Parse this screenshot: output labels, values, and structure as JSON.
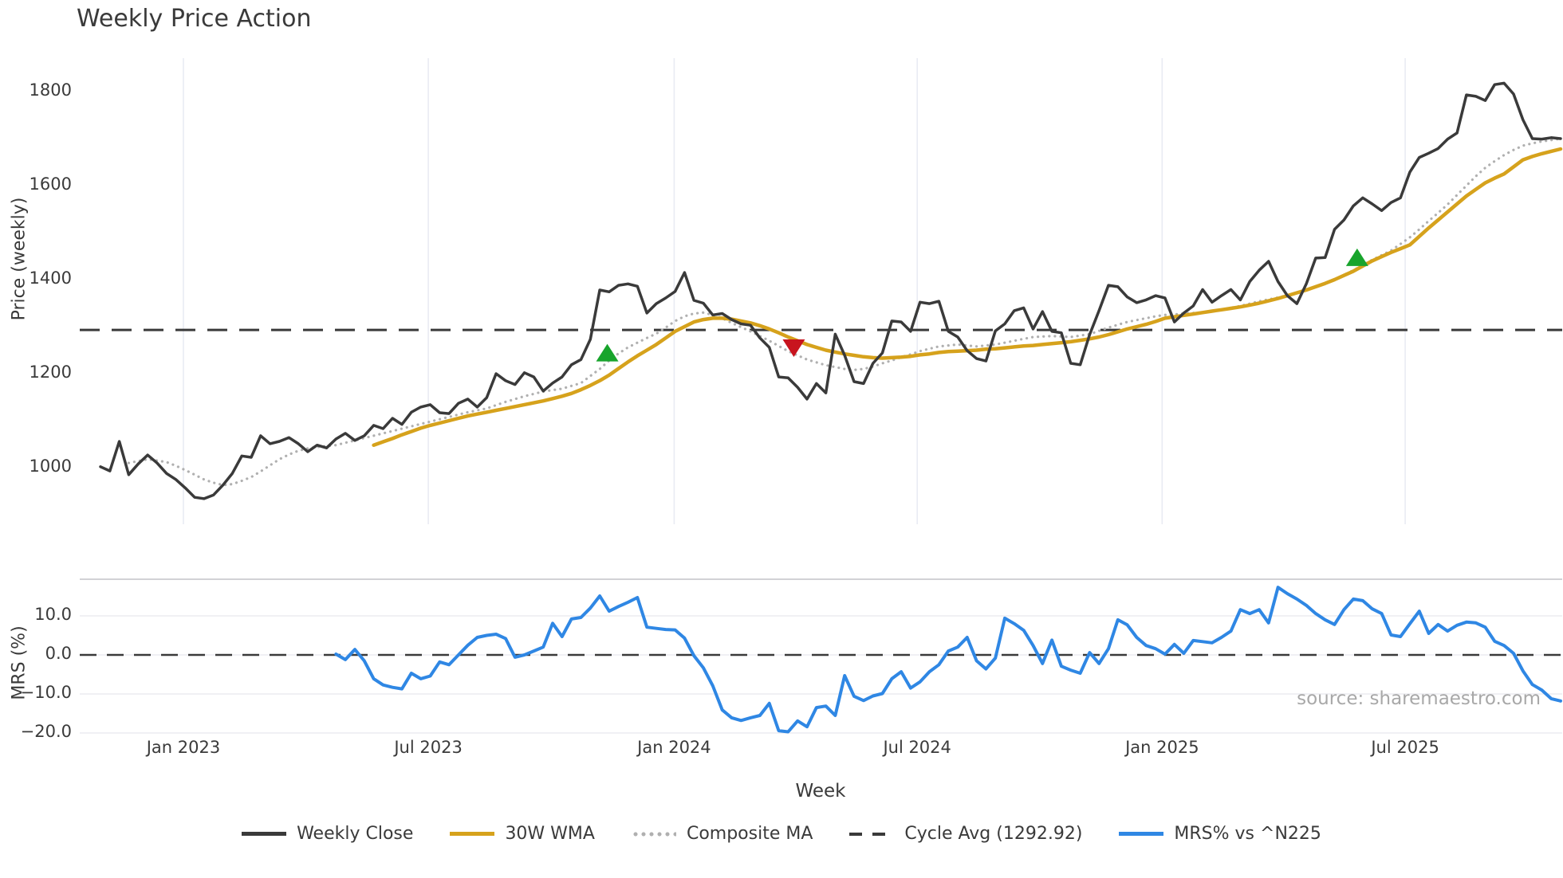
{
  "title": "Weekly Price Action",
  "source": "source: sharemaestro.com",
  "colors": {
    "text": "#3a3a3a",
    "weekly_close": "#3a3a3a",
    "wma_30w": "#d6a21c",
    "composite_ma": "#b0b0b0",
    "cycle_avg": "#3a3a3a",
    "mrs_line": "#2f87e4",
    "buy_marker": "#18a42c",
    "sell_marker": "#c8141e",
    "gridline": "#e9ebf3",
    "mrs_gridline": "#ececf1",
    "panel_spine": "#cbcbcf",
    "source_text": "#a8a8a8"
  },
  "legend": {
    "items": [
      {
        "label": "Weekly Close",
        "swatch": "solid",
        "color": "#3a3a3a"
      },
      {
        "label": "30W WMA",
        "swatch": "solid",
        "color": "#d6a21c"
      },
      {
        "label": "Composite MA",
        "swatch": "dotted",
        "color": "#b0b0b0"
      },
      {
        "label": "Cycle Avg (1292.92)",
        "swatch": "dashed",
        "color": "#3a3a3a"
      },
      {
        "label": "MRS% vs ^N225",
        "swatch": "solid",
        "color": "#2f87e4"
      }
    ]
  },
  "chart_data": {
    "type": "line",
    "title": "Weekly Price Action",
    "x_axis": {
      "label": "Week",
      "ticks": [
        {
          "label": "Jan 2023",
          "week": 8.8
        },
        {
          "label": "Jul 2023",
          "week": 34.8
        },
        {
          "label": "Jan 2024",
          "week": 60.9
        },
        {
          "label": "Jul 2024",
          "week": 86.7
        },
        {
          "label": "Jan 2025",
          "week": 112.7
        },
        {
          "label": "Jul 2025",
          "week": 138.5
        }
      ],
      "range_weeks": [
        0,
        155
      ],
      "grid": true
    },
    "price_panel": {
      "ylabel": "Price (weekly)",
      "ylim": [
        885,
        1884
      ],
      "ticks": [
        {
          "value": 1800,
          "label": "1800"
        },
        {
          "value": 1600,
          "label": "1600"
        },
        {
          "value": 1400,
          "label": "1400"
        },
        {
          "value": 1200,
          "label": "1200"
        },
        {
          "value": 1000,
          "label": "1000"
        }
      ],
      "cycle_avg_value": 1292.92
    },
    "mrs_panel": {
      "ylabel": "MRS (%)",
      "ylim": [
        -24,
        19.4
      ],
      "ticks": [
        {
          "value": 10,
          "label": "10.0"
        },
        {
          "value": 0,
          "label": "0.0"
        },
        {
          "value": -10,
          "label": "−10.0"
        },
        {
          "value": -20,
          "label": "−20.0"
        }
      ],
      "zero_line": 0
    },
    "series": [
      {
        "name": "Composite MA",
        "panel": "price",
        "style": "dotted",
        "color": "#b0b0b0",
        "width": 3.2,
        "start_week": 3,
        "values": [
          1010,
          1014,
          1018,
          1015,
          1012,
          1004,
          995,
          985,
          975,
          968,
          963,
          965,
          972,
          980,
          992,
          1005,
          1018,
          1028,
          1036,
          1041,
          1044,
          1046,
          1048,
          1053,
          1058,
          1063,
          1068,
          1073,
          1078,
          1083,
          1088,
          1093,
          1098,
          1103,
          1108,
          1113,
          1118,
          1122,
          1126,
          1133,
          1140,
          1146,
          1152,
          1157,
          1162,
          1165,
          1168,
          1174,
          1180,
          1195,
          1210,
          1228,
          1243,
          1256,
          1266,
          1276,
          1285,
          1298,
          1312,
          1322,
          1328,
          1330,
          1325,
          1318,
          1308,
          1299,
          1290,
          1280,
          1270,
          1259,
          1248,
          1239,
          1230,
          1224,
          1218,
          1214,
          1210,
          1208,
          1210,
          1215,
          1222,
          1228,
          1235,
          1241,
          1248,
          1253,
          1258,
          1260,
          1262,
          1260,
          1258,
          1260,
          1262,
          1266,
          1270,
          1274,
          1278,
          1279,
          1280,
          1279,
          1278,
          1281,
          1284,
          1291,
          1298,
          1304,
          1310,
          1314,
          1318,
          1322,
          1325,
          1326,
          1328,
          1329,
          1330,
          1333,
          1336,
          1340,
          1344,
          1349,
          1354,
          1358,
          1362,
          1367,
          1372,
          1378,
          1385,
          1392,
          1400,
          1410,
          1420,
          1431,
          1442,
          1452,
          1462,
          1476,
          1490,
          1507,
          1525,
          1542,
          1560,
          1580,
          1600,
          1620,
          1638,
          1652,
          1665,
          1676,
          1685,
          1690,
          1694,
          1697,
          1700
        ]
      },
      {
        "name": "30W WMA",
        "panel": "price",
        "style": "solid",
        "color": "#d6a21c",
        "width": 4.5,
        "start_week": 29,
        "values": [
          1048,
          1055,
          1062,
          1070,
          1077,
          1084,
          1090,
          1095,
          1100,
          1105,
          1110,
          1114,
          1118,
          1122,
          1126,
          1130,
          1134,
          1138,
          1142,
          1147,
          1152,
          1158,
          1166,
          1175,
          1185,
          1197,
          1211,
          1225,
          1238,
          1250,
          1262,
          1276,
          1290,
          1300,
          1310,
          1315,
          1318,
          1318,
          1316,
          1312,
          1308,
          1302,
          1295,
          1287,
          1278,
          1270,
          1262,
          1256,
          1250,
          1246,
          1242,
          1239,
          1236,
          1234,
          1233,
          1234,
          1235,
          1237,
          1240,
          1242,
          1245,
          1247,
          1248,
          1249,
          1250,
          1252,
          1253,
          1255,
          1257,
          1259,
          1260,
          1262,
          1264,
          1266,
          1268,
          1271,
          1274,
          1278,
          1283,
          1289,
          1295,
          1300,
          1305,
          1311,
          1318,
          1321,
          1324,
          1327,
          1330,
          1333,
          1336,
          1339,
          1342,
          1346,
          1350,
          1355,
          1360,
          1366,
          1372,
          1378,
          1385,
          1392,
          1400,
          1409,
          1418,
          1429,
          1440,
          1449,
          1458,
          1466,
          1474,
          1492,
          1510,
          1527,
          1544,
          1561,
          1578,
          1592,
          1606,
          1616,
          1625,
          1640,
          1655,
          1662,
          1668,
          1673,
          1678
        ]
      },
      {
        "name": "Weekly Close",
        "panel": "price",
        "style": "solid",
        "color": "#3a3a3a",
        "width": 3.5,
        "start_week": 0,
        "values": [
          1002,
          993,
          1056,
          985,
          1008,
          1027,
          1010,
          988,
          975,
          957,
          937,
          934,
          942,
          963,
          988,
          1025,
          1022,
          1068,
          1051,
          1056,
          1064,
          1051,
          1034,
          1048,
          1042,
          1061,
          1073,
          1058,
          1068,
          1090,
          1083,
          1105,
          1092,
          1118,
          1129,
          1134,
          1117,
          1115,
          1137,
          1146,
          1129,
          1149,
          1200,
          1185,
          1177,
          1202,
          1193,
          1163,
          1180,
          1193,
          1219,
          1230,
          1273,
          1378,
          1374,
          1388,
          1391,
          1386,
          1329,
          1349,
          1361,
          1375,
          1415,
          1356,
          1350,
          1325,
          1328,
          1315,
          1306,
          1303,
          1276,
          1256,
          1193,
          1191,
          1171,
          1146,
          1179,
          1159,
          1284,
          1239,
          1183,
          1179,
          1222,
          1244,
          1312,
          1310,
          1290,
          1352,
          1349,
          1354,
          1290,
          1278,
          1249,
          1232,
          1227,
          1291,
          1306,
          1334,
          1340,
          1295,
          1332,
          1290,
          1287,
          1222,
          1219,
          1283,
          1334,
          1388,
          1385,
          1363,
          1351,
          1357,
          1366,
          1361,
          1310,
          1329,
          1344,
          1379,
          1352,
          1366,
          1379,
          1357,
          1396,
          1420,
          1439,
          1396,
          1366,
          1349,
          1391,
          1446,
          1447,
          1507,
          1527,
          1557,
          1574,
          1561,
          1547,
          1564,
          1574,
          1629,
          1660,
          1669,
          1679,
          1699,
          1712,
          1793,
          1790,
          1781,
          1815,
          1818,
          1795,
          1740,
          1700,
          1699,
          1702,
          1700
        ]
      },
      {
        "name": "MRS% vs ^N225",
        "panel": "mrs",
        "style": "solid",
        "color": "#2f87e4",
        "width": 4,
        "start_week": 25,
        "values": [
          0.2,
          -1.2,
          1.4,
          -1.5,
          -6.1,
          -7.7,
          -8.3,
          -8.7,
          -4.7,
          -6.1,
          -5.4,
          -1.8,
          -2.5,
          0.0,
          2.5,
          4.5,
          5.0,
          5.3,
          4.2,
          -0.6,
          0.0,
          1.0,
          2.0,
          8.1,
          4.7,
          9.2,
          9.6,
          12.0,
          15.1,
          11.2,
          12.4,
          13.5,
          14.7,
          7.1,
          6.8,
          6.5,
          6.4,
          4.3,
          -0.2,
          -3.3,
          -7.9,
          -14.1,
          -16.1,
          -16.8,
          -16.1,
          -15.5,
          -12.4,
          -19.4,
          -19.7,
          -16.9,
          -18.4,
          -13.5,
          -13.1,
          -15.5,
          -5.3,
          -10.6,
          -11.7,
          -10.5,
          -9.9,
          -6.1,
          -4.3,
          -8.5,
          -6.9,
          -4.3,
          -2.5,
          1.0,
          2.0,
          4.5,
          -1.5,
          -3.6,
          -0.8,
          9.4,
          8.0,
          6.3,
          2.4,
          -2.2,
          3.8,
          -2.9,
          -3.9,
          -4.7,
          0.6,
          -2.2,
          1.6,
          9.0,
          7.7,
          4.5,
          2.4,
          1.6,
          0.2,
          2.7,
          0.4,
          3.7,
          3.4,
          3.1,
          4.5,
          6.1,
          11.6,
          10.6,
          11.6,
          8.2,
          17.3,
          15.7,
          14.3,
          12.7,
          10.6,
          9.0,
          7.8,
          11.6,
          14.3,
          13.9,
          11.8,
          10.6,
          5.1,
          4.7,
          8.0,
          11.2,
          5.5,
          7.8,
          6.1,
          7.6,
          8.4,
          8.2,
          7.1,
          3.5,
          2.4,
          0.4,
          -4.1,
          -7.6,
          -9.0,
          -11.2,
          -11.8
        ]
      }
    ],
    "markers": [
      {
        "shape": "up",
        "week": 53.8,
        "value": 1243,
        "color": "#18a42c",
        "meaning": "buy-signal"
      },
      {
        "shape": "down",
        "week": 73.6,
        "value": 1256,
        "color": "#c8141e",
        "meaning": "sell-signal"
      },
      {
        "shape": "up",
        "week": 133.4,
        "value": 1446,
        "color": "#18a42c",
        "meaning": "buy-signal"
      }
    ],
    "legend_position": "bottom-center",
    "grid": "vertical-price-panel, horizontal-mrs-panel"
  }
}
